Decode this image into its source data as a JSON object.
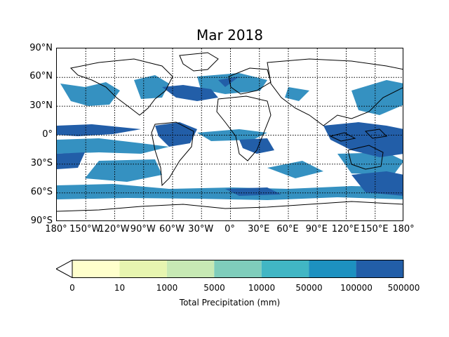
{
  "title": "Mar 2018",
  "y_axis": {
    "ticks": [
      "90°N",
      "60°N",
      "30°N",
      "0°",
      "30°S",
      "60°S",
      "90°S"
    ]
  },
  "x_axis": {
    "ticks": [
      "180°",
      "150°W",
      "120°W",
      "90°W",
      "60°W",
      "30°W",
      "0°",
      "30°E",
      "60°E",
      "90°E",
      "120°E",
      "150°E",
      "180°"
    ]
  },
  "colorbar": {
    "label": "Total Precipitation (mm)",
    "ticks": [
      "0",
      "10",
      "1000",
      "5000",
      "10000",
      "50000",
      "100000",
      "500000"
    ],
    "colors": [
      "#ffffcc",
      "#e7f5b0",
      "#c7e9b4",
      "#7fcdbb",
      "#41b6c4",
      "#1d91c0",
      "#225ea8"
    ],
    "extend": "min"
  },
  "map": {
    "projection": "equirectangular",
    "grid": "dotted"
  }
}
